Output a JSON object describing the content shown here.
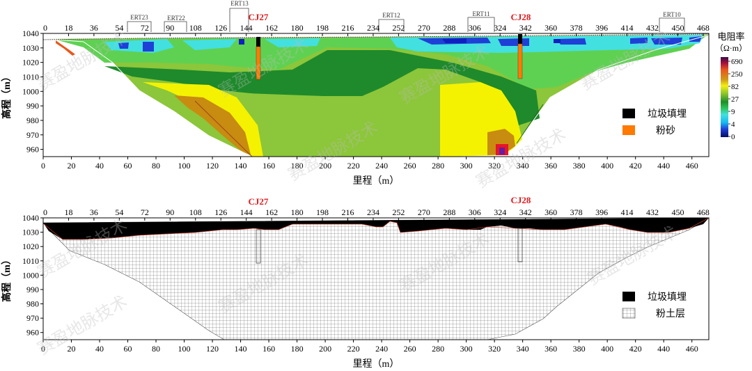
{
  "top_panel": {
    "ylabel": "高程（m）",
    "xlabel": "里程（m）",
    "y_ticks": [
      "1040",
      "1030",
      "1020",
      "1010",
      "1000",
      "990",
      "980",
      "970",
      "960"
    ],
    "x_ticks": [
      "0",
      "20",
      "40",
      "60",
      "80",
      "100",
      "120",
      "140",
      "160",
      "180",
      "200",
      "220",
      "240",
      "260",
      "280",
      "300",
      "320",
      "340",
      "360",
      "380",
      "400",
      "420",
      "440",
      "460"
    ],
    "top_ticks": [
      "0",
      "18",
      "36",
      "54",
      "72",
      "90",
      "108",
      "126",
      "144",
      "162",
      "180",
      "198",
      "216",
      "234",
      "252",
      "270",
      "288",
      "306",
      "324",
      "342",
      "360",
      "378",
      "396",
      "414",
      "432",
      "450",
      "468"
    ],
    "boreholes": [
      "CJ27",
      "CJ28"
    ],
    "ert_labels": [
      "ERT23",
      "ERT22",
      "ERT13",
      "ERT12",
      "ERT11",
      "ERT10"
    ],
    "legend": [
      {
        "label": "垃圾填埋",
        "color": "#000000"
      },
      {
        "label": "粉砂",
        "color": "#ff7a00"
      }
    ],
    "colorbar": {
      "title": "电阻率",
      "unit": "（Ω·m）",
      "ticks": [
        "690",
        "250",
        "82",
        "27",
        "9",
        "4",
        "0"
      ],
      "colors": [
        "#3a0a46",
        "#7a1450",
        "#c2183a",
        "#e8621c",
        "#d29a14",
        "#c8a20e",
        "#f3ef12",
        "#c8dc2c",
        "#8ac22c",
        "#37a435",
        "#1e8f2a",
        "#2ec45c",
        "#7be36f",
        "#43e0e0",
        "#17b7f0",
        "#1f6de6",
        "#1020c0",
        "#070a66"
      ]
    }
  },
  "bottom_panel": {
    "ylabel": "高程（m）",
    "xlabel": "里程（m）",
    "y_ticks": [
      "1040",
      "1030",
      "1020",
      "1010",
      "1000",
      "990",
      "980",
      "970",
      "960"
    ],
    "x_ticks": [
      "0",
      "20",
      "40",
      "60",
      "80",
      "100",
      "120",
      "140",
      "160",
      "180",
      "200",
      "220",
      "240",
      "260",
      "280",
      "300",
      "320",
      "340",
      "360",
      "380",
      "400",
      "420",
      "440",
      "460"
    ],
    "top_ticks": [
      "0",
      "18",
      "36",
      "54",
      "72",
      "90",
      "108",
      "126",
      "144",
      "162",
      "180",
      "198",
      "216",
      "234",
      "252",
      "270",
      "288",
      "306",
      "324",
      "342",
      "360",
      "378",
      "396",
      "414",
      "432",
      "450",
      "468"
    ],
    "boreholes": [
      "CJ27",
      "CJ28"
    ],
    "legend": [
      {
        "label": "垃圾填埋",
        "pattern": "solid-black"
      },
      {
        "label": "粉土层",
        "pattern": "grid"
      }
    ]
  },
  "watermark": "赛盈地脉技术"
}
